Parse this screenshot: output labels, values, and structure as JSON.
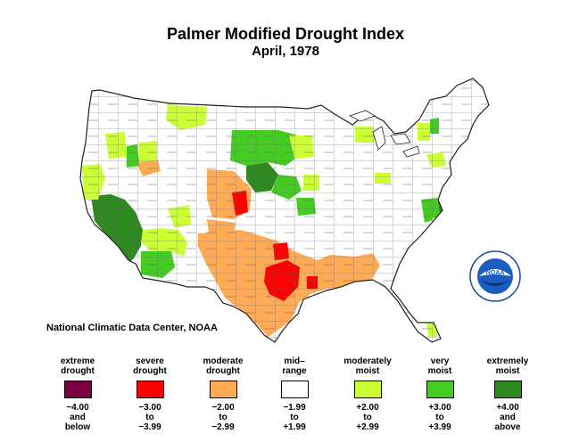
{
  "header": {
    "title": "Palmer Modified Drought Index",
    "subtitle": "April, 1978"
  },
  "credit": "National Climatic Data Center, NOAA",
  "logo": {
    "text": "NOAA",
    "icon": "noaa-seal-icon"
  },
  "legend": [
    {
      "label1": "extreme",
      "label2": "drought",
      "color": "#7a0040",
      "r1": "−4.00",
      "r2": "and",
      "r3": "below"
    },
    {
      "label1": "severe",
      "label2": "drought",
      "color": "#ff0000",
      "r1": "−3.00",
      "r2": "to",
      "r3": "−3.99"
    },
    {
      "label1": "moderate",
      "label2": "drought",
      "color": "#ffaa55",
      "r1": "−2.00",
      "r2": "to",
      "r3": "−2.99"
    },
    {
      "label1": "mid–",
      "label2": "range",
      "color": "#ffffff",
      "r1": "−1.99",
      "r2": "to",
      "r3": "+1.99"
    },
    {
      "label1": "moderately",
      "label2": "moist",
      "color": "#ccff33",
      "r1": "+2.00",
      "r2": "to",
      "r3": "+2.99"
    },
    {
      "label1": "very",
      "label2": "moist",
      "color": "#44cc22",
      "r1": "+3.00",
      "r2": "to",
      "r3": "+3.99"
    },
    {
      "label1": "extremely",
      "label2": "moist",
      "color": "#2d8a1e",
      "r1": "+4.00",
      "r2": "and",
      "r3": "above"
    }
  ]
}
